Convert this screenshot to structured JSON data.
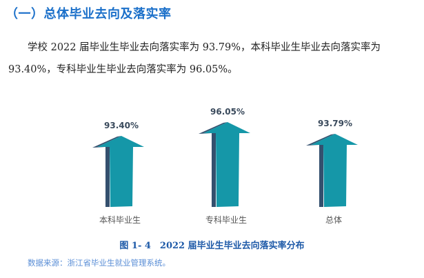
{
  "section": {
    "title": "（一）总体毕业去向及落实率"
  },
  "paragraph": {
    "text": "学校 2022 届毕业生毕业去向落实率为 93.79%，本科毕业生毕业去向落实率为 93.40%，专科毕业生毕业去向落实率为 96.05%。"
  },
  "colors": {
    "arrow_face": "#1597a8",
    "arrow_side": "#34506e",
    "title": "#1a6fc9",
    "caption": "#1e5aa8",
    "source": "#5a8ed6"
  },
  "chart_data": {
    "type": "bar",
    "style": "3d-arrow",
    "title": "图 1- 4 2022 届毕业生毕业去向落实率分布",
    "categories": [
      "本科毕业生",
      "专科毕业生",
      "总体"
    ],
    "values": [
      93.4,
      96.05,
      93.79
    ],
    "value_labels": [
      "93.40%",
      "96.05%",
      "93.79%"
    ],
    "xlabel": "",
    "ylabel": "",
    "grid": false,
    "legend": false
  },
  "caption": {
    "text": "图 1- 4　2022 届毕业生毕业去向落实率分布"
  },
  "source": {
    "text": "数据来源：浙江省毕业生就业管理系统。"
  }
}
